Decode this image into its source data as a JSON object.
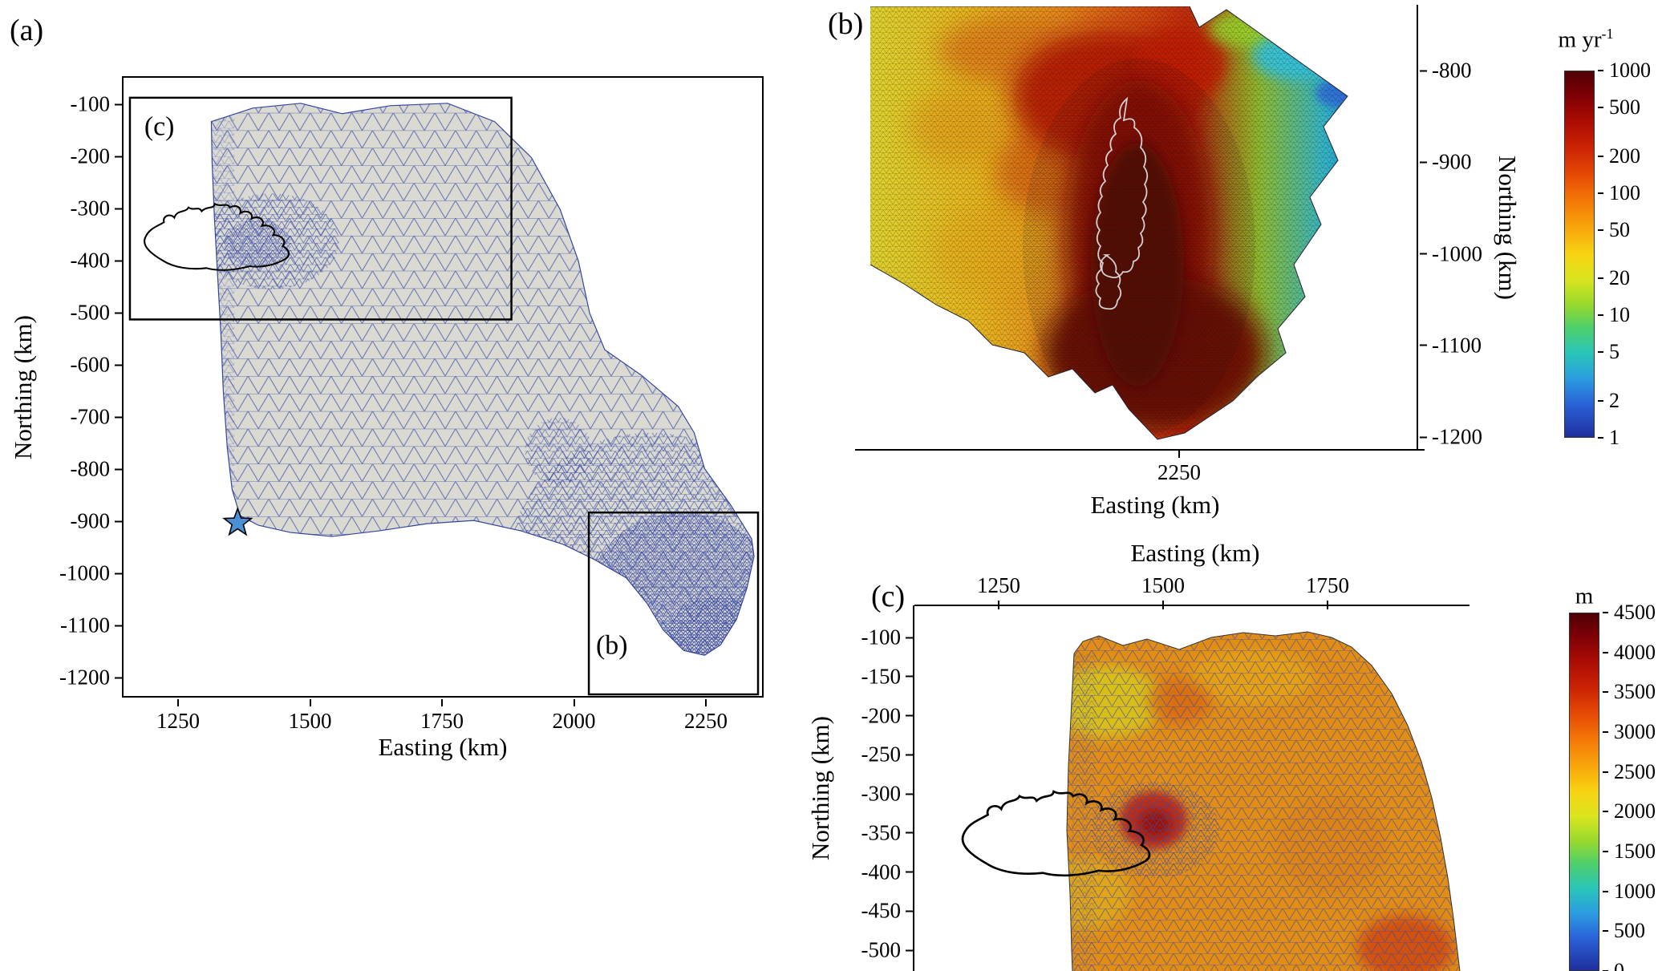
{
  "figure": {
    "type": "Three-panel model figure: finite-element mesh of an ice-sheet model domain with two zoom insets",
    "background": "#ffffff"
  },
  "chart_data": [
    {
      "id": "a",
      "panel_label": "(a)",
      "type": "heatmap",
      "subtype": "triangular-mesh-map",
      "xlabel": "Easting (km)",
      "ylabel": "Northing (km)",
      "xticks": [
        1250,
        1500,
        1750,
        2000,
        2250
      ],
      "yticks": [
        -100,
        -200,
        -300,
        -400,
        -500,
        -600,
        -700,
        -800,
        -900,
        -1000,
        -1100,
        -1200
      ],
      "xlim": [
        1140,
        2360
      ],
      "ylim": [
        -1240,
        -45
      ],
      "mesh_color": "#3a4aa4",
      "mesh_fill": "#dadad2",
      "content": "Unstructured triangular mesh over the full model domain; mesh strongly refined (dense dark blue) in the lower-right corner and moderately refined around the black coastline outline",
      "annotations": {
        "inset_c_label": "(c)",
        "inset_c_rect_km": {
          "x0": 1155,
          "y0": -85,
          "x1": 1882,
          "y1": -512
        },
        "inset_b_label": "(b)",
        "inset_b_rect_km": {
          "x0": 2029,
          "y0": -868,
          "x1": 2351,
          "y1": -1218
        },
        "star_marker_km": {
          "x": 1361,
          "y": -904,
          "color": "#4b8fd6"
        },
        "coastline_outline": "Iceland coastline drawn in black near (1200-1470, -290 to -420)"
      }
    },
    {
      "id": "b",
      "panel_label": "(b)",
      "type": "heatmap",
      "subtype": "velocity-map",
      "xlabel": "Easting (km)",
      "ylabel": "Northing (km)",
      "xticks": [
        2250
      ],
      "yticks": [
        -800,
        -900,
        -1000,
        -1100,
        -1200
      ],
      "colorbar": {
        "title": "m yr",
        "title_sup": "-1",
        "scale": "log",
        "min": 1,
        "max": 1000,
        "ticks": [
          1000,
          500,
          200,
          100,
          50,
          20,
          10,
          5,
          2,
          1
        ],
        "palette": "rainbow: dark red = 1000 m/yr, dark blue = 1 m/yr"
      },
      "content": "Zoom of lower-right domain on refined mesh: fast dark-red ice stream in the centre, yellow-orange slow flow to the west, green-cyan-blue margin to the east, grey outline contour in the centre"
    },
    {
      "id": "c",
      "panel_label": "(c)",
      "type": "heatmap",
      "subtype": "elevation-map",
      "xlabel": "Easting (km)",
      "ylabel": "Northing (km)",
      "xticks": [
        1250,
        1500,
        1750
      ],
      "yticks": [
        -100,
        -150,
        -200,
        -250,
        -300,
        -350,
        -400,
        -450,
        -500
      ],
      "colorbar": {
        "title": "m",
        "title_sup": "",
        "scale": "linear",
        "min": 0,
        "max": 4500,
        "ticks": [
          4500,
          4000,
          3500,
          3000,
          2500,
          2000,
          1500,
          1000,
          500,
          0
        ],
        "palette": "rainbow: dark red = 4500 m, dark blue = 0 m"
      },
      "content": "Zoom of upper-left domain: orange-yellow field with visible triangular mesh, red anomaly at the eastern end of the black Iceland coastline outline"
    }
  ]
}
